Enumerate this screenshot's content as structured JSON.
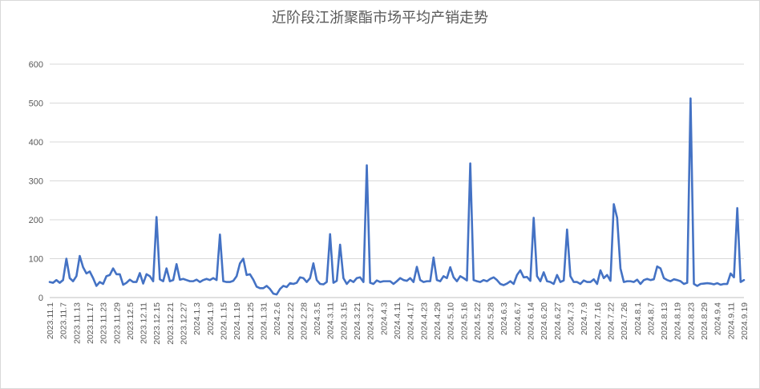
{
  "chart_data": {
    "type": "line",
    "title": "近阶段江浙聚酯市场平均产销走势",
    "xlabel": "",
    "ylabel": "",
    "ylim": [
      0,
      600
    ],
    "yticks": [
      0,
      100,
      200,
      300,
      400,
      500,
      600
    ],
    "grid": "horizontal",
    "legend": "none",
    "line_color": "#4472c4",
    "xtick_labels": [
      "2023.11.1",
      "2023.11.7",
      "2023.11.13",
      "2023.11.17",
      "2023.11.23",
      "2023.11.29",
      "2023.12.5",
      "2023.12.11",
      "2023.12.15",
      "2023.12.21",
      "2023.12.27",
      "2024.1.3",
      "2024.1.9",
      "2024.1.15",
      "2024.1.19",
      "2024.1.25",
      "2024.1.31",
      "2024.2.6",
      "2024.2.22",
      "2024.2.28",
      "2024.3.5",
      "2024.3.11",
      "2024.3.15",
      "2024.3.21",
      "2024.3.27",
      "2024.4.3",
      "2024.4.11",
      "2024.4.17",
      "2024.4.23",
      "2024.4.29",
      "2024.5.10",
      "2024.5.16",
      "2024.5.22",
      "2024.5.28",
      "2024.6.3",
      "2024.6.7",
      "2024.6.14",
      "2024.6.20",
      "2024.6.27",
      "2024.7.3",
      "2024.7.9",
      "2024.7.16",
      "2024.7.22",
      "2024.7.26",
      "2024.8.1",
      "2024.8.7",
      "2024.8.13",
      "2024.8.19",
      "2024.8.23",
      "2024.8.29",
      "2024.9.4",
      "2024.9.11",
      "2024.9.19"
    ],
    "series": [
      {
        "values": [
          40,
          38,
          45,
          38,
          45,
          100,
          50,
          42,
          55,
          107,
          78,
          62,
          67,
          50,
          30,
          40,
          35,
          55,
          58,
          75,
          60,
          60,
          33,
          38,
          46,
          40,
          40,
          63,
          36,
          60,
          55,
          42,
          207,
          47,
          42,
          75,
          42,
          45,
          86,
          46,
          48,
          45,
          42,
          42,
          46,
          40,
          45,
          48,
          45,
          50,
          45,
          162,
          42,
          40,
          40,
          43,
          55,
          88,
          100,
          58,
          60,
          46,
          28,
          24,
          24,
          30,
          22,
          10,
          8,
          22,
          30,
          27,
          37,
          35,
          38,
          52,
          50,
          40,
          50,
          88,
          45,
          35,
          34,
          40,
          163,
          38,
          43,
          136,
          50,
          35,
          45,
          40,
          50,
          52,
          40,
          340,
          38,
          35,
          44,
          40,
          42,
          42,
          42,
          35,
          42,
          50,
          45,
          43,
          50,
          40,
          79,
          45,
          40,
          42,
          42,
          103,
          45,
          42,
          55,
          50,
          78,
          52,
          42,
          55,
          50,
          44,
          345,
          45,
          42,
          40,
          45,
          42,
          48,
          52,
          45,
          35,
          32,
          36,
          42,
          35,
          58,
          70,
          52,
          53,
          43,
          205,
          55,
          42,
          65,
          42,
          40,
          35,
          58,
          40,
          44,
          175,
          55,
          40,
          40,
          35,
          44,
          40,
          40,
          47,
          35,
          70,
          50,
          58,
          43,
          240,
          205,
          75,
          40,
          42,
          42,
          40,
          46,
          35,
          45,
          48,
          45,
          47,
          80,
          75,
          50,
          45,
          42,
          47,
          45,
          42,
          35,
          38,
          512,
          35,
          30,
          35,
          36,
          37,
          36,
          34,
          37,
          33,
          35,
          35,
          62,
          52,
          230,
          40,
          45
        ]
      }
    ]
  }
}
